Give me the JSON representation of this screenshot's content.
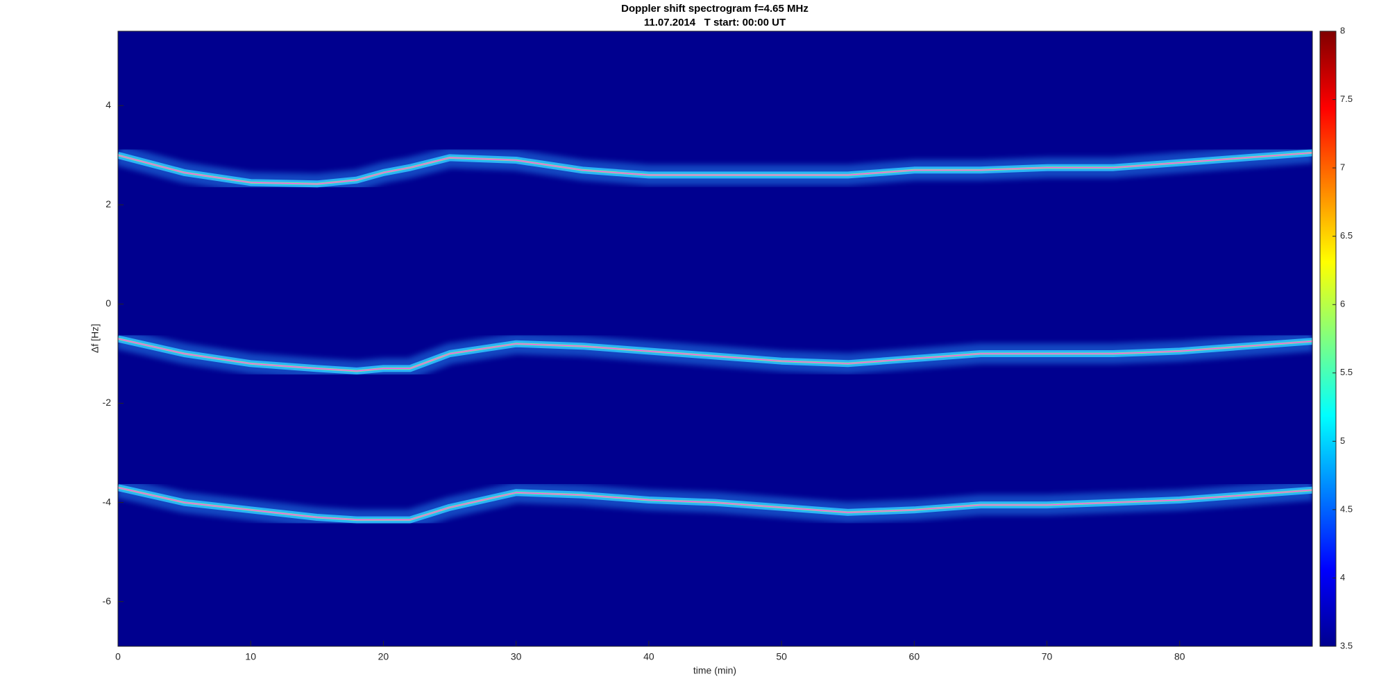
{
  "chart_data": {
    "type": "spectrogram",
    "title": "Doppler shift spectrogram f=4.65 MHz",
    "subtitle": "11.07.2014   T start: 00:00 UT",
    "x_label": "time (min)",
    "y_label": "Δf [Hz]",
    "background": "#00008f",
    "x": [
      0,
      5,
      10,
      15,
      18,
      20,
      22,
      25,
      30,
      35,
      40,
      45,
      50,
      55,
      60,
      65,
      70,
      75,
      80,
      85,
      90
    ],
    "series": [
      {
        "color": "#2a9cff",
        "values": [
          3.0,
          2.65,
          2.45,
          2.42,
          2.5,
          2.65,
          2.75,
          2.95,
          2.9,
          2.7,
          2.6,
          2.6,
          2.6,
          2.6,
          2.7,
          2.7,
          2.75,
          2.75,
          2.85,
          2.95,
          3.05
        ]
      },
      {
        "color": "#2a9cff",
        "values": [
          -0.7,
          -1.0,
          -1.2,
          -1.3,
          -1.35,
          -1.3,
          -1.3,
          -1.0,
          -0.8,
          -0.85,
          -0.95,
          -1.05,
          -1.15,
          -1.2,
          -1.1,
          -1.0,
          -1.0,
          -1.0,
          -0.95,
          -0.85,
          -0.75
        ]
      },
      {
        "color": "#2a9cff",
        "values": [
          -3.7,
          -4.0,
          -4.15,
          -4.3,
          -4.35,
          -4.35,
          -4.35,
          -4.1,
          -3.8,
          -3.85,
          -3.95,
          -4.0,
          -4.1,
          -4.2,
          -4.15,
          -4.05,
          -4.05,
          -4.0,
          -3.95,
          -3.85,
          -3.75
        ]
      }
    ],
    "xlim": [
      0,
      90
    ],
    "xticks": [
      0,
      10,
      20,
      30,
      40,
      50,
      60,
      70,
      80
    ],
    "ylim": [
      -6.9,
      5.5
    ],
    "yticks": [
      -6,
      -4,
      -2,
      0,
      2,
      4
    ],
    "colorbar": {
      "lim": [
        3.5,
        8
      ],
      "ticks": [
        3.5,
        4,
        4.5,
        5,
        5.5,
        6,
        6.5,
        7,
        7.5,
        8
      ],
      "colormap": [
        "#00008f",
        "#0000ff",
        "#0080ff",
        "#00ffff",
        "#80ff80",
        "#ffff00",
        "#ff8000",
        "#ff0000",
        "#800000"
      ]
    }
  }
}
